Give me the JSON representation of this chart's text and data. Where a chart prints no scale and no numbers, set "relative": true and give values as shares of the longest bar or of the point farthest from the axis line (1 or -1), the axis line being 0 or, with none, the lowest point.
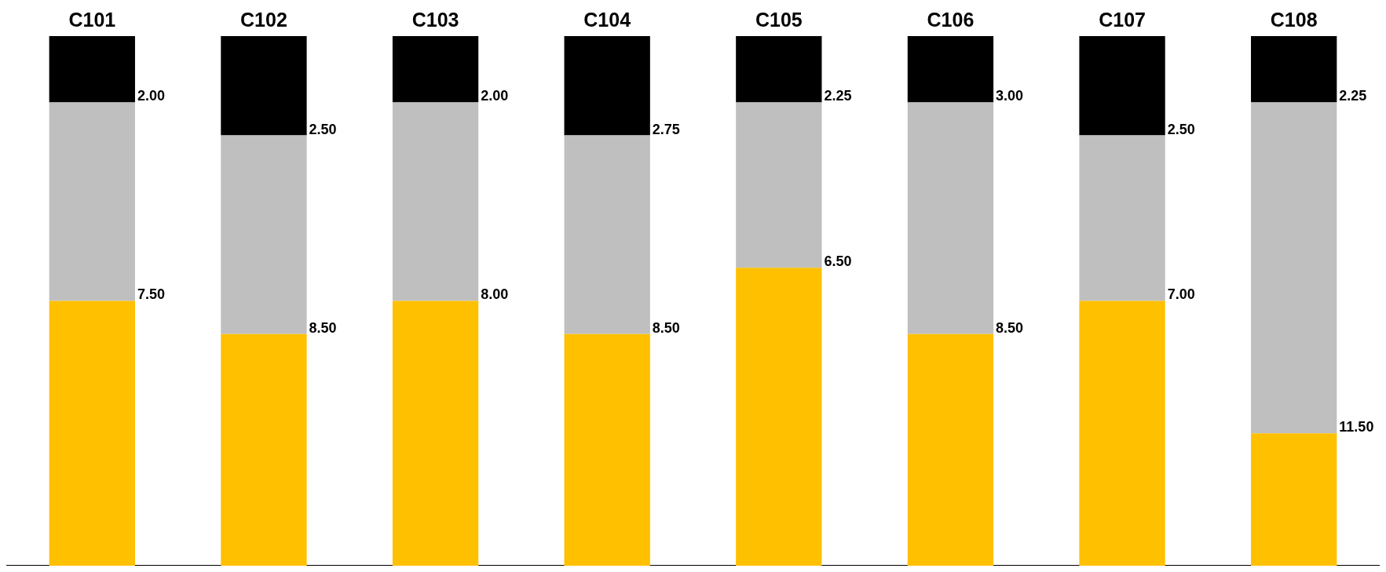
{
  "chart_data": {
    "type": "bar",
    "stacked": true,
    "relative": true,
    "categories": [
      "C101",
      "C102",
      "C103",
      "C104",
      "C105",
      "C106",
      "C107",
      "C108"
    ],
    "series": [
      {
        "color": "#ffc000",
        "values": [
          0.5,
          0.4375,
          0.5,
          0.4375,
          0.5625,
          0.4375,
          0.5,
          0.25
        ]
      },
      {
        "color": "#bfbfbf",
        "values": [
          0.375,
          0.375,
          0.375,
          0.375,
          0.3125,
          0.4375,
          0.3125,
          0.625
        ]
      },
      {
        "color": "#000000",
        "values": [
          0.125,
          0.1875,
          0.125,
          0.1875,
          0.125,
          0.125,
          0.1875,
          0.125
        ]
      }
    ],
    "annotations": [
      "2.00",
      "7.50",
      "2.50",
      "8.50",
      "2.00",
      "8.00",
      "2.75",
      "8.50",
      "2.25",
      "6.50",
      "3.00",
      "8.50",
      "2.50",
      "7.00",
      "2.25",
      "11.50"
    ]
  }
}
